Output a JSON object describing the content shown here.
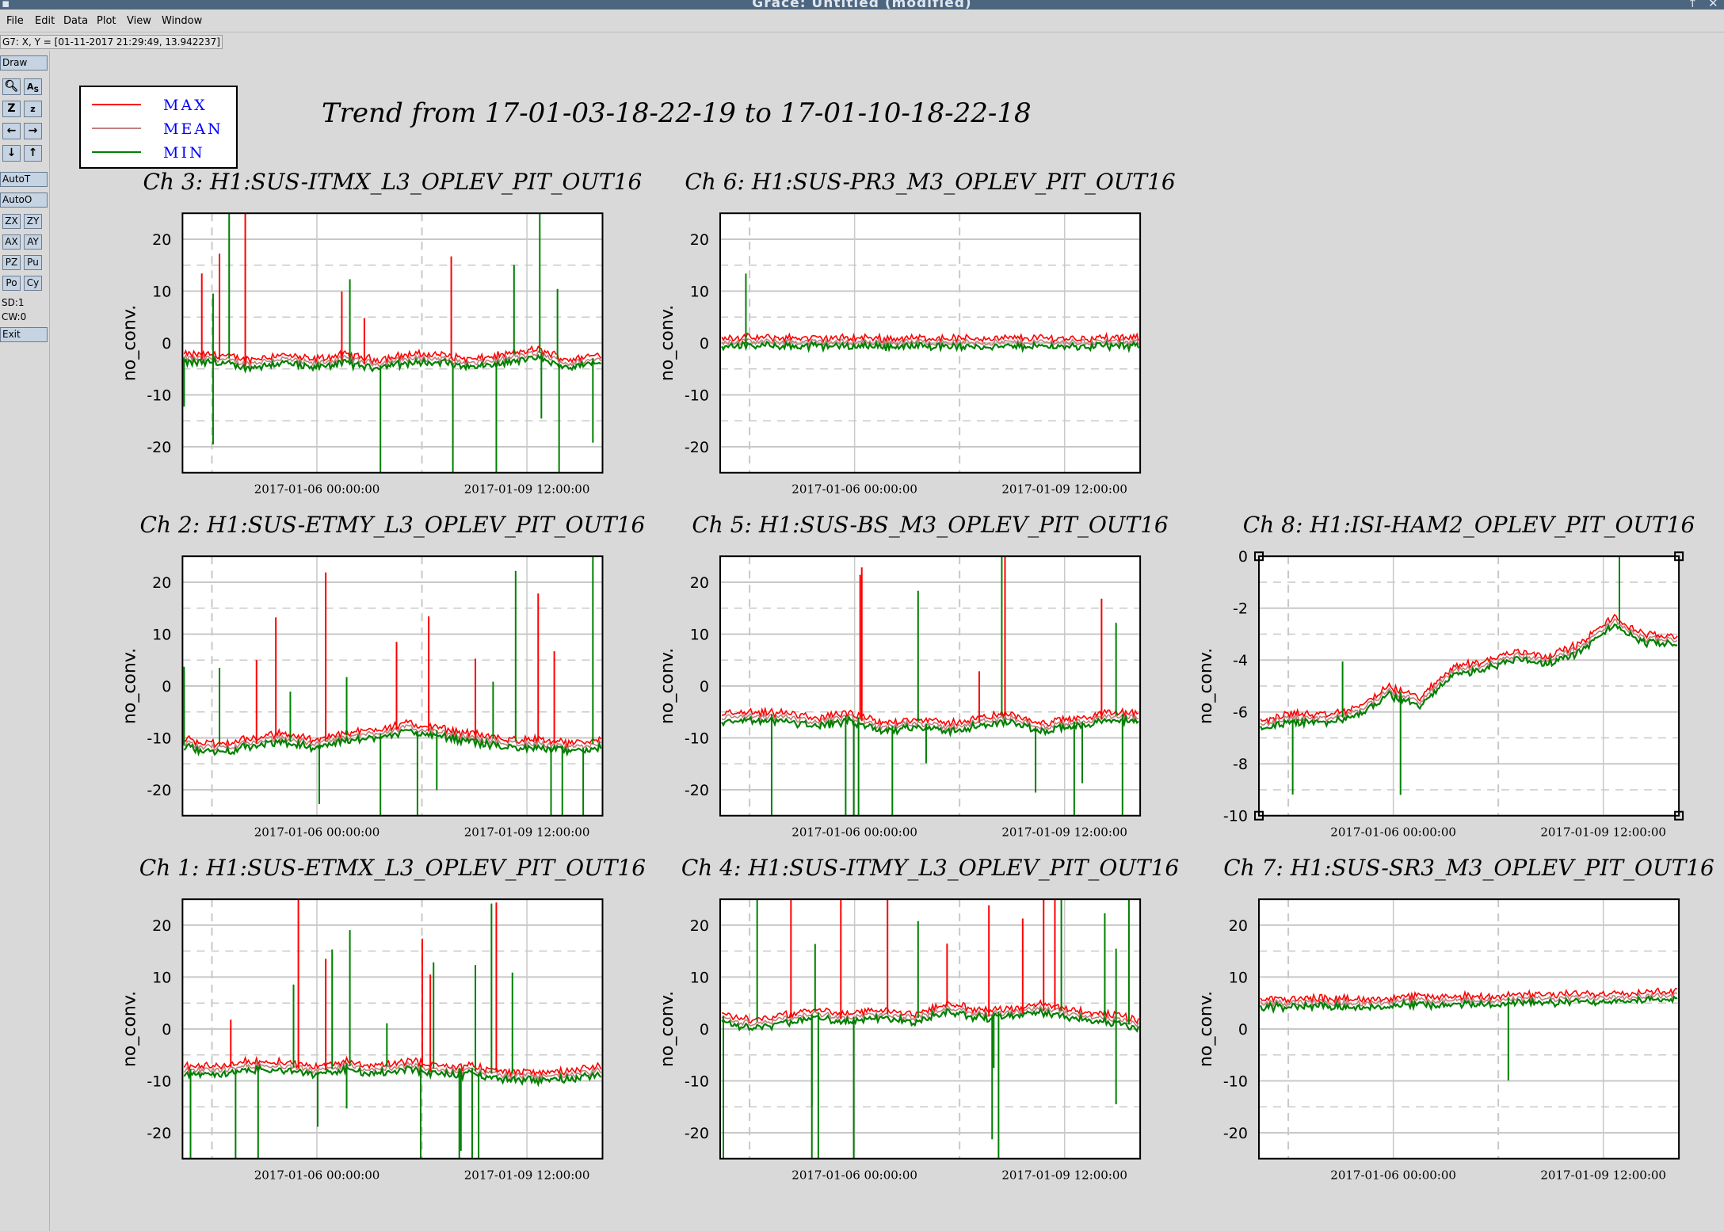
{
  "window": {
    "title": "Grace: Untitled (modified)"
  },
  "menu": [
    "File",
    "Edit",
    "Data",
    "Plot",
    "View",
    "Window"
  ],
  "locator": "G7: X, Y = [01-11-2017 21:29:49, 13.942237]",
  "toolbar": {
    "draw": "Draw",
    "icons": [
      "zoom-icon",
      "autoscale-as-icon",
      "zoom-in-icon",
      "zoom-out-icon",
      "arrow-left-icon",
      "arrow-right-icon",
      "arrow-down-icon",
      "arrow-up-icon"
    ],
    "autot": "AutoT",
    "autoo": "AutoO",
    "pairs": [
      [
        "ZX",
        "ZY"
      ],
      [
        "AX",
        "AY"
      ],
      [
        "PZ",
        "Pu"
      ],
      [
        "Po",
        "Cy"
      ]
    ],
    "sd": "SD:1",
    "cw": "CW:0",
    "exit": "Exit"
  },
  "legend": {
    "entries": [
      {
        "name": "MAX",
        "color": "#ff0000"
      },
      {
        "name": "MEAN",
        "color": "#c08080"
      },
      {
        "name": "MIN",
        "color": "#008000"
      }
    ]
  },
  "main_title": "Trend from 17-01-03-18-22-19 to 17-01-10-18-22-18",
  "colors": {
    "max": "#ff0000",
    "mean": "#c08080",
    "min": "#008000",
    "grid": "#c8c8c8"
  },
  "chart_data": [
    {
      "type": "line",
      "title": "Ch 3: H1:SUS-ITMX_L3_OPLEV_PIT_OUT16",
      "ylabel": "no_conv.",
      "ylim": [
        -25,
        25
      ],
      "yticks": [
        20,
        10,
        0,
        -10,
        -20
      ],
      "xticks": [
        "2017-01-06 00:00:00",
        "2017-01-09 12:00:00"
      ],
      "baseline": [
        -3,
        -3,
        -4,
        -3,
        -4,
        -3,
        -4,
        -3,
        -3,
        -4,
        -3,
        -2,
        -4,
        -3
      ],
      "spikes": 20
    },
    {
      "type": "line",
      "title": "Ch 6: H1:SUS-PR3_M3_OPLEV_PIT_OUT16",
      "ylabel": "no_conv.",
      "ylim": [
        -25,
        25
      ],
      "yticks": [
        20,
        10,
        0,
        -10,
        -20
      ],
      "xticks": [
        "2017-01-06 00:00:00",
        "2017-01-09 12:00:00"
      ],
      "baseline": [
        0.3,
        0.2,
        0.2,
        0.1,
        0.2,
        0.1,
        0.2,
        0.1,
        0.1,
        0.2,
        0.1,
        0.2,
        0.1
      ],
      "spikes": 1
    },
    {
      "type": "line",
      "title": "Ch 2: H1:SUS-ETMY_L3_OPLEV_PIT_OUT16",
      "ylabel": "no_conv.",
      "ylim": [
        -25,
        25
      ],
      "yticks": [
        20,
        10,
        0,
        -10,
        -20
      ],
      "xticks": [
        "2017-01-06 00:00:00",
        "2017-01-09 12:00:00"
      ],
      "baseline": [
        -11,
        -12,
        -11,
        -10,
        -11,
        -10,
        -9,
        -8,
        -9,
        -10,
        -11,
        -11,
        -12,
        -11
      ],
      "spikes": 22
    },
    {
      "type": "line",
      "title": "Ch 5: H1:SUS-BS_M3_OPLEV_PIT_OUT16",
      "ylabel": "no_conv.",
      "ylim": [
        -25,
        25
      ],
      "yticks": [
        20,
        10,
        0,
        -10,
        -20
      ],
      "xticks": [
        "2017-01-06 00:00:00",
        "2017-01-09 12:00:00"
      ],
      "baseline": [
        -6,
        -6,
        -6,
        -7,
        -6,
        -8,
        -7,
        -8,
        -7,
        -6,
        -8,
        -7,
        -6,
        -6
      ],
      "spikes": 18
    },
    {
      "type": "line",
      "title": "Ch 8: H1:ISI-HAM2_OPLEV_PIT_OUT16",
      "ylabel": "no_conv.",
      "ylim": [
        -10,
        0
      ],
      "yticks": [
        0,
        -2,
        -4,
        -6,
        -8,
        -10
      ],
      "xticks": [
        "2017-01-06 00:00:00",
        "2017-01-09 12:00:00"
      ],
      "baseline": [
        -6.5,
        -6.2,
        -6.3,
        -6,
        -5.2,
        -5.6,
        -4.4,
        -4.2,
        -3.8,
        -4.0,
        -3.5,
        -2.5,
        -3.2,
        -3.2
      ],
      "spikes": 4
    },
    {
      "type": "line",
      "title": "Ch 1: H1:SUS-ETMX_L3_OPLEV_PIT_OUT16",
      "ylabel": "no_conv.",
      "ylim": [
        -25,
        25
      ],
      "yticks": [
        20,
        10,
        0,
        -10,
        -20
      ],
      "xticks": [
        "2017-01-06 00:00:00",
        "2017-01-09 12:00:00"
      ],
      "baseline": [
        -8,
        -8,
        -7,
        -7,
        -8,
        -7,
        -8,
        -7,
        -8,
        -8,
        -9,
        -9,
        -9,
        -8
      ],
      "spikes": 24
    },
    {
      "type": "line",
      "title": "Ch 4: H1:SUS-ITMY_L3_OPLEV_PIT_OUT16",
      "ylabel": "no_conv.",
      "ylim": [
        -25,
        25
      ],
      "yticks": [
        20,
        10,
        0,
        -10,
        -20
      ],
      "xticks": [
        "2017-01-06 00:00:00",
        "2017-01-09 12:00:00"
      ],
      "baseline": [
        2,
        1,
        2,
        3,
        2,
        3,
        2,
        4,
        3,
        3,
        4,
        3,
        2,
        1
      ],
      "spikes": 24
    },
    {
      "type": "line",
      "title": "Ch 7: H1:SUS-SR3_M3_OPLEV_PIT_OUT16",
      "ylabel": "no_conv.",
      "ylim": [
        -25,
        25
      ],
      "yticks": [
        20,
        10,
        0,
        -10,
        -20
      ],
      "xticks": [
        "2017-01-06 00:00:00",
        "2017-01-09 12:00:00"
      ],
      "baseline": [
        5,
        5,
        5.2,
        5,
        5.3,
        5.5,
        5.4,
        5.6,
        5.7,
        5.8,
        6,
        6.2,
        6.4,
        6.5
      ],
      "spikes": 1
    }
  ]
}
